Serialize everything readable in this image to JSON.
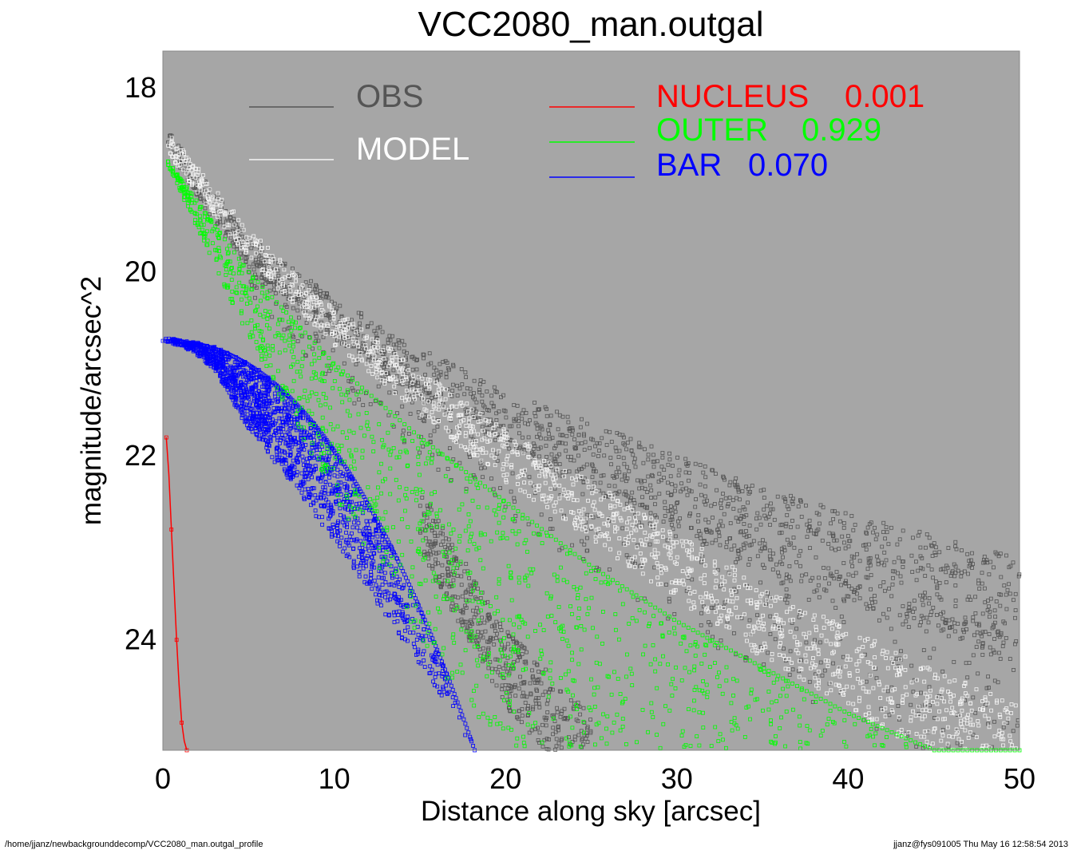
{
  "chart_data": {
    "type": "scatter",
    "title": "VCC2080_man.outgal",
    "xlabel": "Distance along sky [arcsec]",
    "ylabel": "magnitude/arcsec^2",
    "xlim": [
      0,
      50
    ],
    "ylim": [
      25.2,
      17.6
    ],
    "y_inverted": true,
    "x_ticks": [
      "0",
      "10",
      "20",
      "30",
      "40",
      "50"
    ],
    "y_ticks": [
      "18",
      "20",
      "22",
      "24"
    ],
    "x_tick_values": [
      0,
      10,
      20,
      30,
      40,
      50
    ],
    "y_tick_values": [
      18,
      20,
      22,
      24
    ],
    "background_color": "#a6a6a6",
    "grid": false,
    "legend_placement": "top",
    "series": [
      {
        "name": "OBS",
        "label": "OBS",
        "value": "",
        "color": "#555555",
        "marker": "open-square",
        "components": [
          {
            "points": [
              [
                0.3,
                18.6
              ],
              [
                5,
                19.8
              ],
              [
                10,
                20.5
              ],
              [
                15,
                21.1
              ],
              [
                20,
                21.6
              ],
              [
                25,
                22.0
              ],
              [
                30,
                22.4
              ],
              [
                35,
                22.8
              ],
              [
                40,
                23.1
              ],
              [
                45,
                23.4
              ],
              [
                50,
                23.7
              ]
            ],
            "spread": 0.45
          },
          {
            "points": [
              [
                15,
                22.7
              ],
              [
                20,
                24.3
              ],
              [
                25,
                25.3
              ]
            ],
            "spread": 0.6
          },
          {
            "points": [
              [
                5,
                20.0
              ],
              [
                10,
                20.9
              ],
              [
                15,
                21.6
              ],
              [
                20,
                22.2
              ],
              [
                25,
                22.7
              ],
              [
                30,
                23.2
              ],
              [
                35,
                23.7
              ],
              [
                40,
                24.1
              ],
              [
                45,
                24.5
              ],
              [
                50,
                24.9
              ]
            ],
            "spread": 0.7
          }
        ]
      },
      {
        "name": "MODEL",
        "label": "MODEL",
        "value": "",
        "color": "#f5f5f5",
        "marker": "open-square",
        "components": [
          {
            "points": [
              [
                0.3,
                18.6
              ],
              [
                5,
                19.7
              ],
              [
                10,
                20.6
              ],
              [
                15,
                21.3
              ],
              [
                20,
                22.0
              ],
              [
                25,
                22.6
              ],
              [
                30,
                23.2
              ],
              [
                35,
                23.8
              ],
              [
                40,
                24.3
              ],
              [
                45,
                24.8
              ],
              [
                50,
                25.2
              ]
            ],
            "spread": 0.4
          }
        ]
      }
    ],
    "components": [
      {
        "name": "NUCLEUS",
        "label": "NUCLEUS",
        "value": "0.001",
        "color": "#ff0000",
        "x": [
          0.2,
          0.35,
          0.5,
          0.65,
          0.8,
          0.95,
          1.1,
          1.25,
          1.4
        ],
        "y": [
          21.8,
          22.2,
          22.8,
          23.4,
          24.0,
          24.5,
          24.9,
          25.1,
          25.2
        ]
      },
      {
        "name": "OUTER",
        "label": "OUTER",
        "value": "0.929",
        "color": "#00ff00",
        "points": [
          [
            0.3,
            18.8
          ],
          [
            5,
            20.0
          ],
          [
            10,
            21.0
          ],
          [
            15,
            21.8
          ],
          [
            20,
            22.5
          ],
          [
            25,
            23.2
          ],
          [
            30,
            23.8
          ],
          [
            35,
            24.3
          ],
          [
            40,
            24.8
          ],
          [
            45,
            25.2
          ]
        ],
        "offset_max": 2.6
      },
      {
        "name": "BAR",
        "label": "BAR",
        "value": "0.070",
        "color": "#0000ff",
        "center_mag": 20.75,
        "x_max": 18.2,
        "x_min": 4.6,
        "mag_max": 25.2
      }
    ]
  },
  "footer": {
    "path": "/home/jjanz/newbackgrounddecomp/VCC2080_man.outgal_profile",
    "stamp": "jjanz@fys091005  Thu May 16 12:58:54 2013"
  }
}
